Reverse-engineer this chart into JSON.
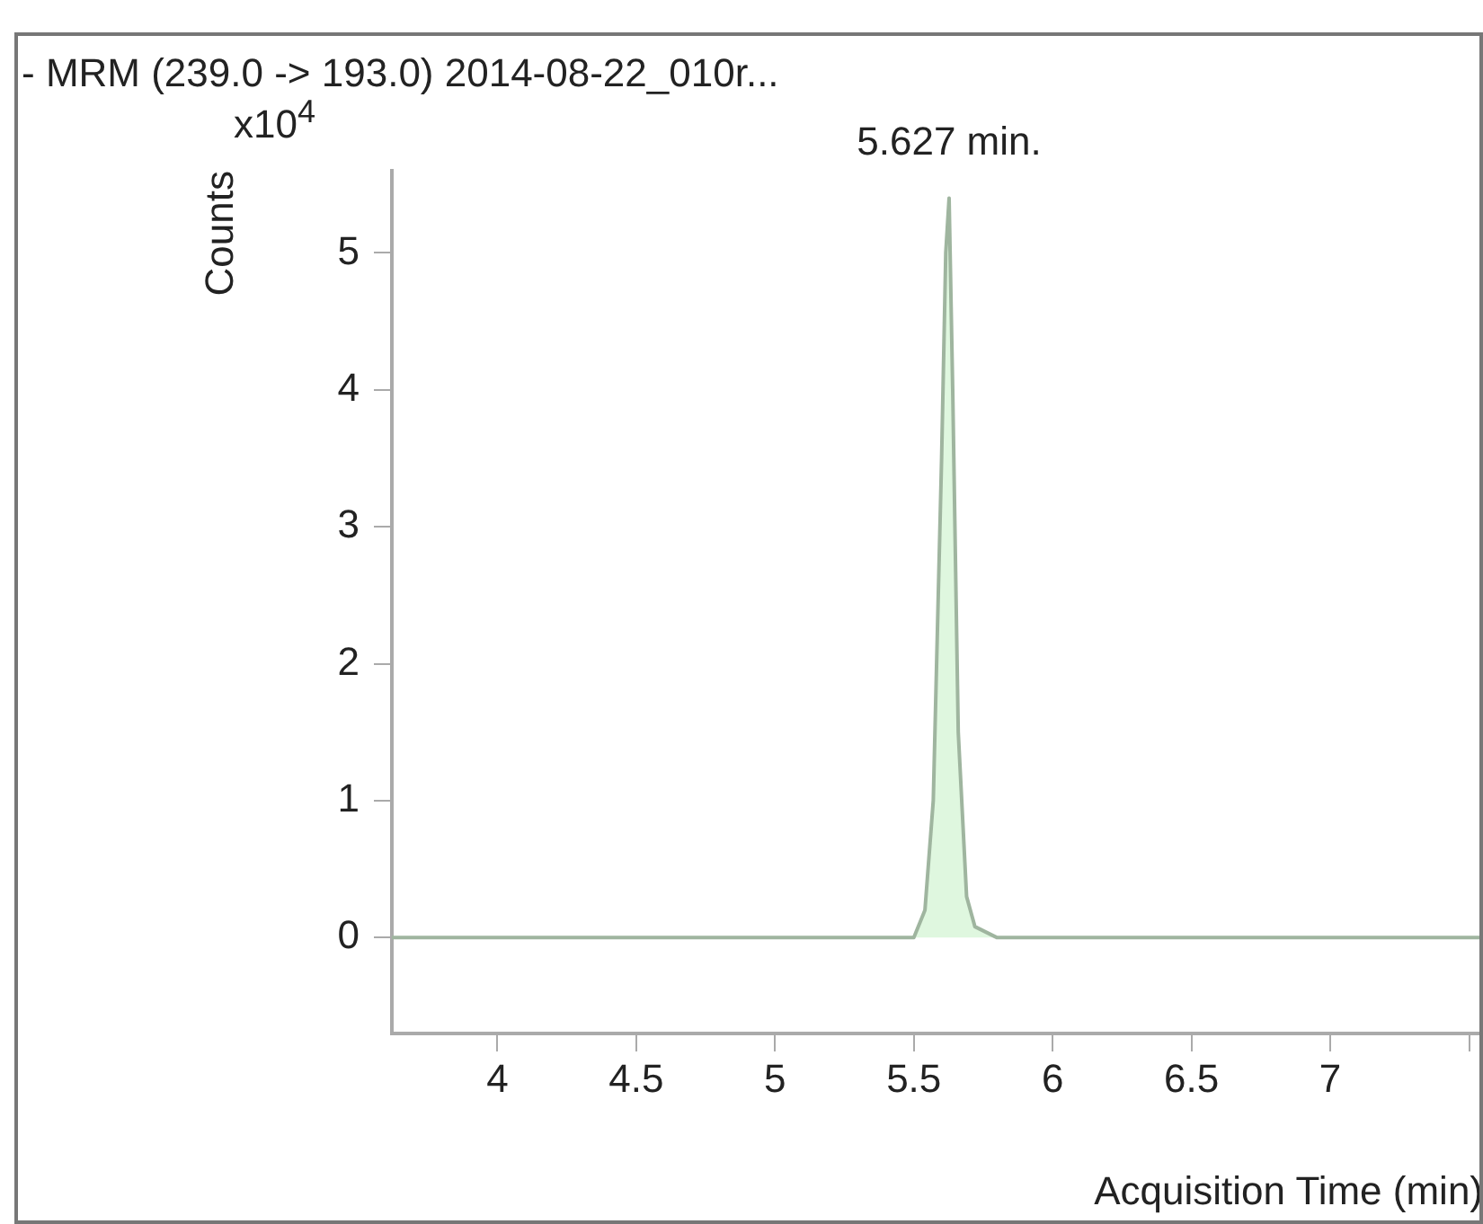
{
  "chart_data": {
    "type": "area",
    "title": "- MRM (239.0 -> 193.0) 2014-08-22_010r...",
    "xlabel": "Acquisition Time (min)",
    "ylabel": "Counts",
    "x": [
      3.62,
      5.5,
      5.54,
      5.57,
      5.6,
      5.615,
      5.627,
      5.64,
      5.66,
      5.69,
      5.72,
      5.8,
      7.55
    ],
    "values": [
      0,
      0,
      0.2,
      1.0,
      3.5,
      5.0,
      5.4,
      4.0,
      1.5,
      0.3,
      0.08,
      0,
      0
    ],
    "color": "#9fb59f",
    "xlim": [
      3.62,
      7.55
    ],
    "xticks": [
      4,
      4.5,
      5,
      5.5,
      6,
      6.5,
      7,
      {
        "value": 7.5,
        "label": null
      }
    ],
    "ylim": [
      -0.7,
      5.6
    ],
    "yticks": [
      0,
      1,
      2,
      3,
      4,
      5
    ],
    "annotations": [
      {
        "text": "5.627 min.",
        "x": 5.627,
        "y": 5.4
      },
      "x10$^{4}$"
    ],
    "grid": false,
    "legend": false
  }
}
